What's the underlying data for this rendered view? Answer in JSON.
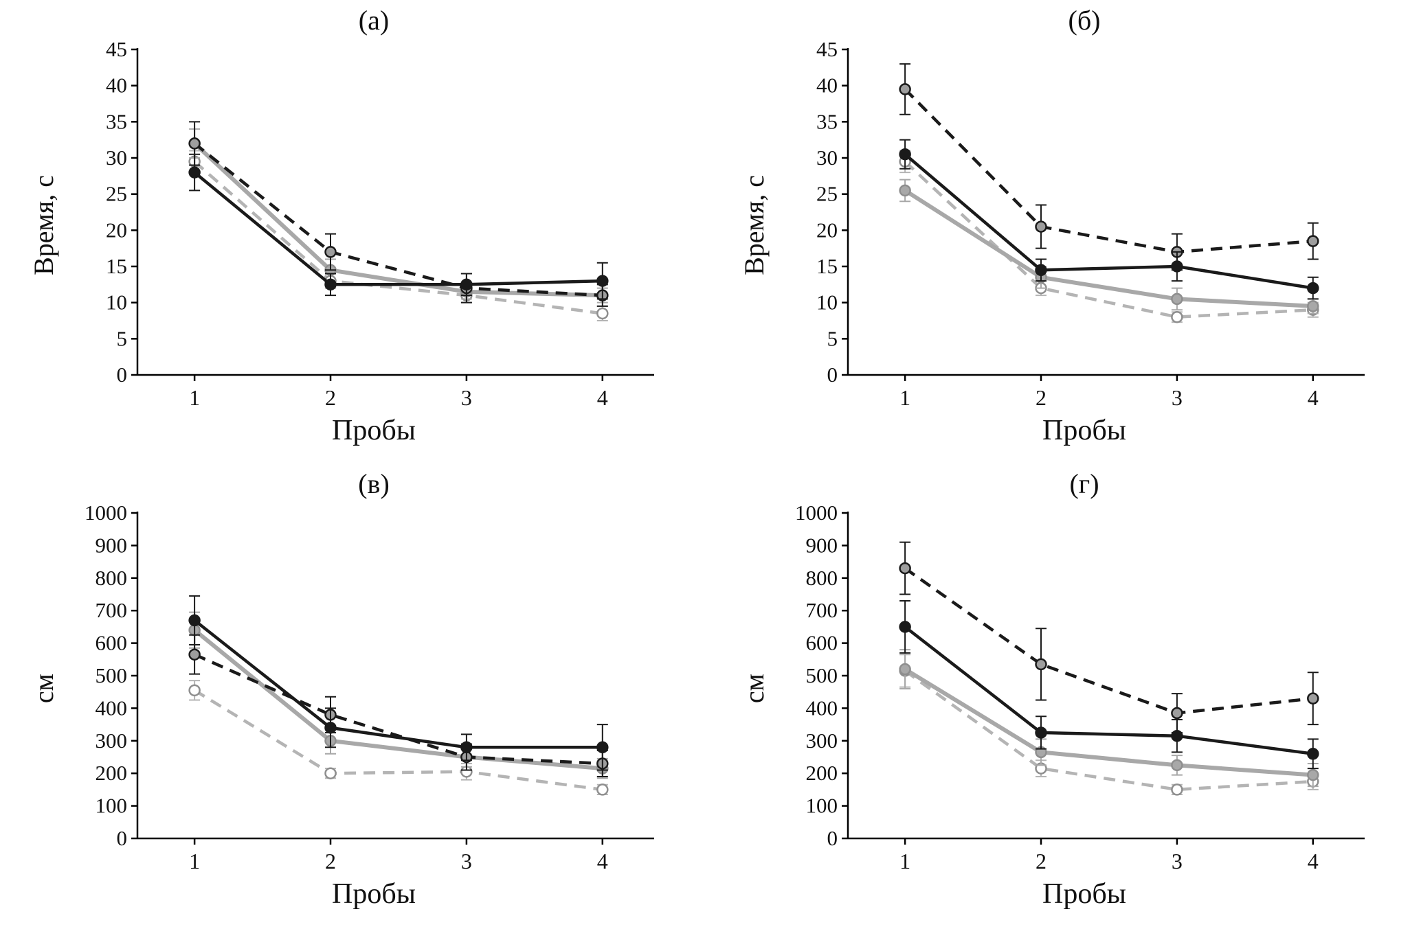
{
  "figure": {
    "background": "#ffffff",
    "axis_color": "#000000"
  },
  "chart_data": [
    {
      "type": "line",
      "title": "(а)",
      "xlabel": "Пробы",
      "ylabel": "Время, с",
      "categories": [
        1,
        2,
        3,
        4
      ],
      "ylim": [
        0,
        45
      ],
      "y_step": 5,
      "grid": "off",
      "legend": "none",
      "series": [
        {
          "name": "gray-dashed-open",
          "color": "#b4b4b4",
          "dash": "dashed",
          "width": 4.5,
          "marker_fill": "#ffffff",
          "marker_stroke": "#8e8e8e",
          "values": [
            29.5,
            13,
            11,
            8.5
          ],
          "errors": [
            1.5,
            1,
            1,
            1
          ]
        },
        {
          "name": "gray-solid",
          "color": "#a8a8a8",
          "dash": "solid",
          "width": 6,
          "marker_fill": "#a8a8a8",
          "marker_stroke": "#8e8e8e",
          "values": [
            32,
            14.5,
            11.5,
            11
          ],
          "errors": [
            2,
            1.5,
            1,
            1
          ]
        },
        {
          "name": "black-dashed",
          "color": "#1a1a1a",
          "dash": "dashed",
          "width": 4.5,
          "marker_fill": "#9e9e9e",
          "marker_stroke": "#1a1a1a",
          "values": [
            32,
            17,
            12,
            11
          ],
          "errors": [
            3,
            2.5,
            2,
            1.5
          ]
        },
        {
          "name": "black-solid",
          "color": "#1a1a1a",
          "dash": "solid",
          "width": 4.5,
          "marker_fill": "#1a1a1a",
          "marker_stroke": "#1a1a1a",
          "values": [
            28,
            12.5,
            12.5,
            13
          ],
          "errors": [
            2.5,
            1.5,
            1.5,
            2.5
          ]
        }
      ]
    },
    {
      "type": "line",
      "title": "(б)",
      "xlabel": "Пробы",
      "ylabel": "Время, с",
      "categories": [
        1,
        2,
        3,
        4
      ],
      "ylim": [
        0,
        45
      ],
      "y_step": 5,
      "grid": "off",
      "legend": "none",
      "series": [
        {
          "name": "gray-dashed-open",
          "color": "#b4b4b4",
          "dash": "dashed",
          "width": 4.5,
          "marker_fill": "#ffffff",
          "marker_stroke": "#8e8e8e",
          "values": [
            29.5,
            12,
            8,
            9
          ],
          "errors": [
            1.5,
            1,
            0.7,
            1
          ]
        },
        {
          "name": "gray-solid",
          "color": "#a8a8a8",
          "dash": "solid",
          "width": 6,
          "marker_fill": "#a8a8a8",
          "marker_stroke": "#8e8e8e",
          "values": [
            25.5,
            13.5,
            10.5,
            9.5
          ],
          "errors": [
            1.5,
            1.5,
            1.5,
            1
          ]
        },
        {
          "name": "black-dashed",
          "color": "#1a1a1a",
          "dash": "dashed",
          "width": 4.5,
          "marker_fill": "#9e9e9e",
          "marker_stroke": "#1a1a1a",
          "values": [
            39.5,
            20.5,
            17,
            18.5
          ],
          "errors": [
            3.5,
            3,
            2.5,
            2.5
          ]
        },
        {
          "name": "black-solid",
          "color": "#1a1a1a",
          "dash": "solid",
          "width": 4.5,
          "marker_fill": "#1a1a1a",
          "marker_stroke": "#1a1a1a",
          "values": [
            30.5,
            14.5,
            15,
            12
          ],
          "errors": [
            2,
            1.5,
            2,
            1.5
          ]
        }
      ]
    },
    {
      "type": "line",
      "title": "(в)",
      "xlabel": "Пробы",
      "ylabel": "см",
      "categories": [
        1,
        2,
        3,
        4
      ],
      "ylim": [
        0,
        1000
      ],
      "y_step": 100,
      "grid": "off",
      "legend": "none",
      "series": [
        {
          "name": "gray-dashed-open",
          "color": "#b4b4b4",
          "dash": "dashed",
          "width": 4.5,
          "marker_fill": "#ffffff",
          "marker_stroke": "#8e8e8e",
          "values": [
            455,
            200,
            205,
            150
          ],
          "errors": [
            30,
            15,
            25,
            15
          ]
        },
        {
          "name": "gray-solid",
          "color": "#a8a8a8",
          "dash": "solid",
          "width": 6,
          "marker_fill": "#a8a8a8",
          "marker_stroke": "#8e8e8e",
          "values": [
            640,
            300,
            250,
            215
          ],
          "errors": [
            55,
            40,
            30,
            30
          ]
        },
        {
          "name": "black-dashed",
          "color": "#1a1a1a",
          "dash": "dashed",
          "width": 4.5,
          "marker_fill": "#9e9e9e",
          "marker_stroke": "#1a1a1a",
          "values": [
            565,
            380,
            250,
            230
          ],
          "errors": [
            60,
            55,
            40,
            40
          ]
        },
        {
          "name": "black-solid",
          "color": "#1a1a1a",
          "dash": "solid",
          "width": 4.5,
          "marker_fill": "#1a1a1a",
          "marker_stroke": "#1a1a1a",
          "values": [
            670,
            340,
            280,
            280
          ],
          "errors": [
            75,
            60,
            40,
            70
          ]
        }
      ]
    },
    {
      "type": "line",
      "title": "(г)",
      "xlabel": "Пробы",
      "ylabel": "см",
      "categories": [
        1,
        2,
        3,
        4
      ],
      "ylim": [
        0,
        1000
      ],
      "y_step": 100,
      "grid": "off",
      "legend": "none",
      "series": [
        {
          "name": "gray-dashed-open",
          "color": "#b4b4b4",
          "dash": "dashed",
          "width": 4.5,
          "marker_fill": "#ffffff",
          "marker_stroke": "#8e8e8e",
          "values": [
            515,
            215,
            150,
            175
          ],
          "errors": [
            50,
            25,
            15,
            25
          ]
        },
        {
          "name": "gray-solid",
          "color": "#a8a8a8",
          "dash": "solid",
          "width": 6,
          "marker_fill": "#a8a8a8",
          "marker_stroke": "#8e8e8e",
          "values": [
            520,
            265,
            225,
            195
          ],
          "errors": [
            60,
            40,
            30,
            35
          ]
        },
        {
          "name": "black-dashed",
          "color": "#1a1a1a",
          "dash": "dashed",
          "width": 4.5,
          "marker_fill": "#9e9e9e",
          "marker_stroke": "#1a1a1a",
          "values": [
            830,
            535,
            385,
            430
          ],
          "errors": [
            80,
            110,
            60,
            80
          ]
        },
        {
          "name": "black-solid",
          "color": "#1a1a1a",
          "dash": "solid",
          "width": 4.5,
          "marker_fill": "#1a1a1a",
          "marker_stroke": "#1a1a1a",
          "values": [
            650,
            325,
            315,
            260
          ],
          "errors": [
            80,
            50,
            50,
            45
          ]
        }
      ]
    }
  ]
}
